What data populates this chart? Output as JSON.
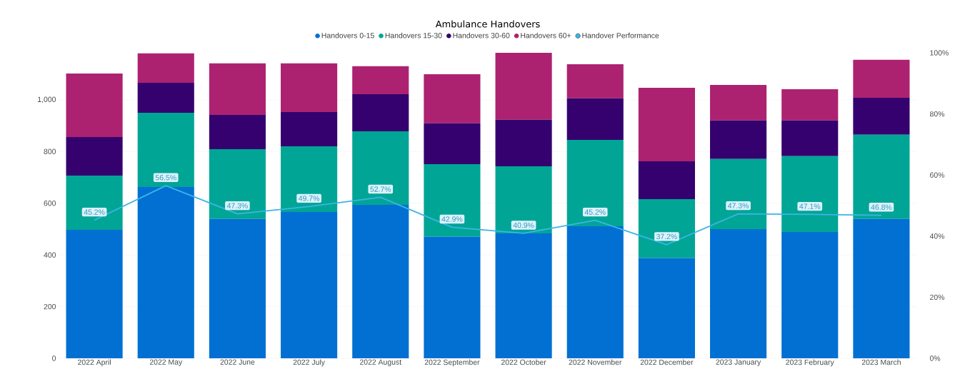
{
  "chart_data": {
    "type": "bar",
    "title": "Ambulance Handovers",
    "stacked": true,
    "categories": [
      "2022 April",
      "2022 May",
      "2022 June",
      "2022 July",
      "2022 August",
      "2022 September",
      "2022 October",
      "2022 November",
      "2022 December",
      "2023 January",
      "2023 February",
      "2023 March"
    ],
    "series": [
      {
        "name": "Handovers 0-15",
        "color": "#0170d2",
        "values": [
          497,
          663,
          539,
          566,
          594,
          470,
          483,
          511,
          387,
          500,
          489,
          539
        ]
      },
      {
        "name": "Handovers 15-30",
        "color": "#01a596",
        "values": [
          210,
          287,
          270,
          254,
          284,
          281,
          260,
          334,
          229,
          271,
          293,
          326
        ]
      },
      {
        "name": "Handovers 30-60",
        "color": "#35016e",
        "values": [
          149,
          116,
          133,
          133,
          144,
          158,
          180,
          161,
          146,
          149,
          138,
          143
        ]
      },
      {
        "name": "Handovers 60+",
        "color": "#ad2270",
        "values": [
          246,
          114,
          199,
          188,
          108,
          190,
          259,
          132,
          285,
          138,
          121,
          147
        ]
      },
      {
        "name": "Handover Performance",
        "type": "line",
        "axis": "y2",
        "color": "#3db4e6",
        "values": [
          45.2,
          56.5,
          47.3,
          49.7,
          52.7,
          42.9,
          40.9,
          45.2,
          37.2,
          47.3,
          47.1,
          46.8
        ],
        "value_labels": [
          "45.2%",
          "56.5%",
          "47.3%",
          "49.7%",
          "52.7%",
          "42.9%",
          "40.9%",
          "45.2%",
          "37.2%",
          "47.3%",
          "47.1%",
          "46.8%"
        ]
      }
    ],
    "ylim": [
      0,
      1182
    ],
    "yticks": [
      0,
      200,
      400,
      600,
      800,
      {
        "value": 1000,
        "label": "1,000"
      }
    ],
    "y2lim": [
      0,
      100
    ],
    "y2ticks": [
      {
        "value": 0,
        "label": "0%"
      },
      {
        "value": 20,
        "label": "20%"
      },
      {
        "value": 40,
        "label": "40%"
      },
      {
        "value": 60,
        "label": "60%"
      },
      {
        "value": 80,
        "label": "80%"
      },
      {
        "value": 100,
        "label": "100%"
      }
    ],
    "grid": "y",
    "legend": "top",
    "marker": "none"
  }
}
